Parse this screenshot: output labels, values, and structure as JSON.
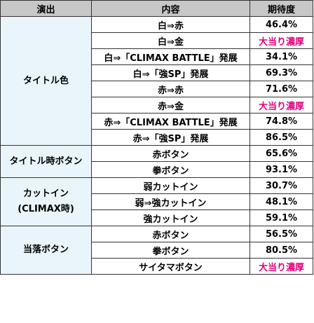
{
  "header": {
    "col1": "演出",
    "col2": "内容",
    "col3": "期待度"
  },
  "colors": {
    "header_bg": "#c7c7c7",
    "group_bg": "#e9f5fb",
    "highlight_text": "#e6007e"
  },
  "groups": [
    {
      "label": "タイトル色",
      "rows": [
        {
          "content": "白⇒赤",
          "rate": "46.4%"
        },
        {
          "content": "白⇒金",
          "rate": "大当り濃厚"
        },
        {
          "content": "白⇒「CLIMAX BATTLE」発展",
          "rate": "34.1%"
        },
        {
          "content": "白⇒「強SP」発展",
          "rate": "69.3%"
        },
        {
          "content": "赤⇒赤",
          "rate": "71.6%"
        },
        {
          "content": "赤⇒金",
          "rate": "大当り濃厚"
        },
        {
          "content": "赤⇒「CLIMAX BATTLE」発展",
          "rate": "74.8%"
        },
        {
          "content": "赤⇒「強SP」発展",
          "rate": "86.5%"
        }
      ]
    },
    {
      "label": "タイトル時ボタン",
      "rows": [
        {
          "content": "赤ボタン",
          "rate": "65.6%"
        },
        {
          "content": "拳ボタン",
          "rate": "93.1%"
        }
      ]
    },
    {
      "label_line1": "カットイン",
      "label_line2": "(CLIMAX時)",
      "rows": [
        {
          "content": "弱カットイン",
          "rate": "30.7%"
        },
        {
          "content": "弱⇒強カットイン",
          "rate": "48.1%"
        },
        {
          "content": "強カットイン",
          "rate": "59.1%"
        }
      ]
    },
    {
      "label": "当落ボタン",
      "rows": [
        {
          "content": "赤ボタン",
          "rate": "56.5%"
        },
        {
          "content": "拳ボタン",
          "rate": "80.5%"
        },
        {
          "content": "サイタマボタン",
          "rate": "大当り濃厚"
        }
      ]
    }
  ]
}
